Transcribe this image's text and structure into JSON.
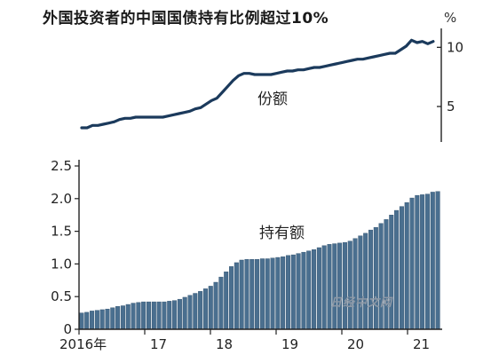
{
  "title": "外国投资者的中国国债持有比例超过10%",
  "colors": {
    "line": "#1b3a5c",
    "bar": "#4a6f8f",
    "bar_edge": "#2d4e6b",
    "axis": "#222222",
    "watermark": "#8c98a6"
  },
  "watermark": "日经中文网",
  "chart_data": [
    {
      "type": "line",
      "label": "份额",
      "y_unit": "%",
      "ylim": [
        2,
        11
      ],
      "y_ticks": [
        "5",
        "10"
      ],
      "x_range": [
        2016.0,
        2021.5
      ],
      "x": [
        2016.0,
        2016.083,
        2016.167,
        2016.25,
        2016.333,
        2016.417,
        2016.5,
        2016.583,
        2016.667,
        2016.75,
        2016.833,
        2016.917,
        2017.0,
        2017.083,
        2017.167,
        2017.25,
        2017.333,
        2017.417,
        2017.5,
        2017.583,
        2017.667,
        2017.75,
        2017.833,
        2017.917,
        2018.0,
        2018.083,
        2018.167,
        2018.25,
        2018.333,
        2018.417,
        2018.5,
        2018.583,
        2018.667,
        2018.75,
        2018.833,
        2018.917,
        2019.0,
        2019.083,
        2019.167,
        2019.25,
        2019.333,
        2019.417,
        2019.5,
        2019.583,
        2019.667,
        2019.75,
        2019.833,
        2019.917,
        2020.0,
        2020.083,
        2020.167,
        2020.25,
        2020.333,
        2020.417,
        2020.5,
        2020.583,
        2020.667,
        2020.75,
        2020.833,
        2020.917,
        2021.0,
        2021.083,
        2021.167,
        2021.25,
        2021.333,
        2021.417
      ],
      "values": [
        3.2,
        3.2,
        3.4,
        3.4,
        3.5,
        3.6,
        3.7,
        3.9,
        4.0,
        4.0,
        4.1,
        4.1,
        4.1,
        4.1,
        4.1,
        4.1,
        4.2,
        4.3,
        4.4,
        4.5,
        4.6,
        4.8,
        4.9,
        5.2,
        5.5,
        5.7,
        6.2,
        6.7,
        7.2,
        7.6,
        7.8,
        7.8,
        7.7,
        7.7,
        7.7,
        7.7,
        7.8,
        7.9,
        8.0,
        8.0,
        8.1,
        8.1,
        8.2,
        8.3,
        8.3,
        8.4,
        8.5,
        8.6,
        8.7,
        8.8,
        8.9,
        9.0,
        9.0,
        9.1,
        9.2,
        9.3,
        9.4,
        9.5,
        9.5,
        9.8,
        10.1,
        10.6,
        10.4,
        10.5,
        10.3,
        10.5
      ]
    },
    {
      "type": "bar",
      "label": "持有额",
      "ylim": [
        0,
        2.5
      ],
      "y_ticks": [
        "0",
        "0.5",
        "1.0",
        "1.5",
        "2.0",
        "2.5"
      ],
      "x_range": [
        2016.0,
        2021.5
      ],
      "x_tick_labels": [
        {
          "x": 2016.0,
          "label": "2016年"
        },
        {
          "x": 2017.0,
          "label": "17"
        },
        {
          "x": 2018.0,
          "label": "18"
        },
        {
          "x": 2019.0,
          "label": "19"
        },
        {
          "x": 2020.0,
          "label": "20"
        },
        {
          "x": 2021.0,
          "label": "21"
        }
      ],
      "values": [
        0.25,
        0.26,
        0.28,
        0.29,
        0.3,
        0.31,
        0.33,
        0.35,
        0.36,
        0.38,
        0.4,
        0.41,
        0.42,
        0.42,
        0.42,
        0.42,
        0.42,
        0.43,
        0.44,
        0.46,
        0.49,
        0.52,
        0.55,
        0.58,
        0.62,
        0.66,
        0.72,
        0.8,
        0.88,
        0.96,
        1.02,
        1.06,
        1.07,
        1.07,
        1.07,
        1.08,
        1.08,
        1.09,
        1.1,
        1.11,
        1.13,
        1.14,
        1.16,
        1.18,
        1.2,
        1.22,
        1.25,
        1.28,
        1.3,
        1.31,
        1.32,
        1.33,
        1.35,
        1.39,
        1.43,
        1.47,
        1.52,
        1.56,
        1.62,
        1.68,
        1.75,
        1.82,
        1.88,
        1.94,
        2.01,
        2.05,
        2.06,
        2.07,
        2.1,
        2.11
      ]
    }
  ]
}
